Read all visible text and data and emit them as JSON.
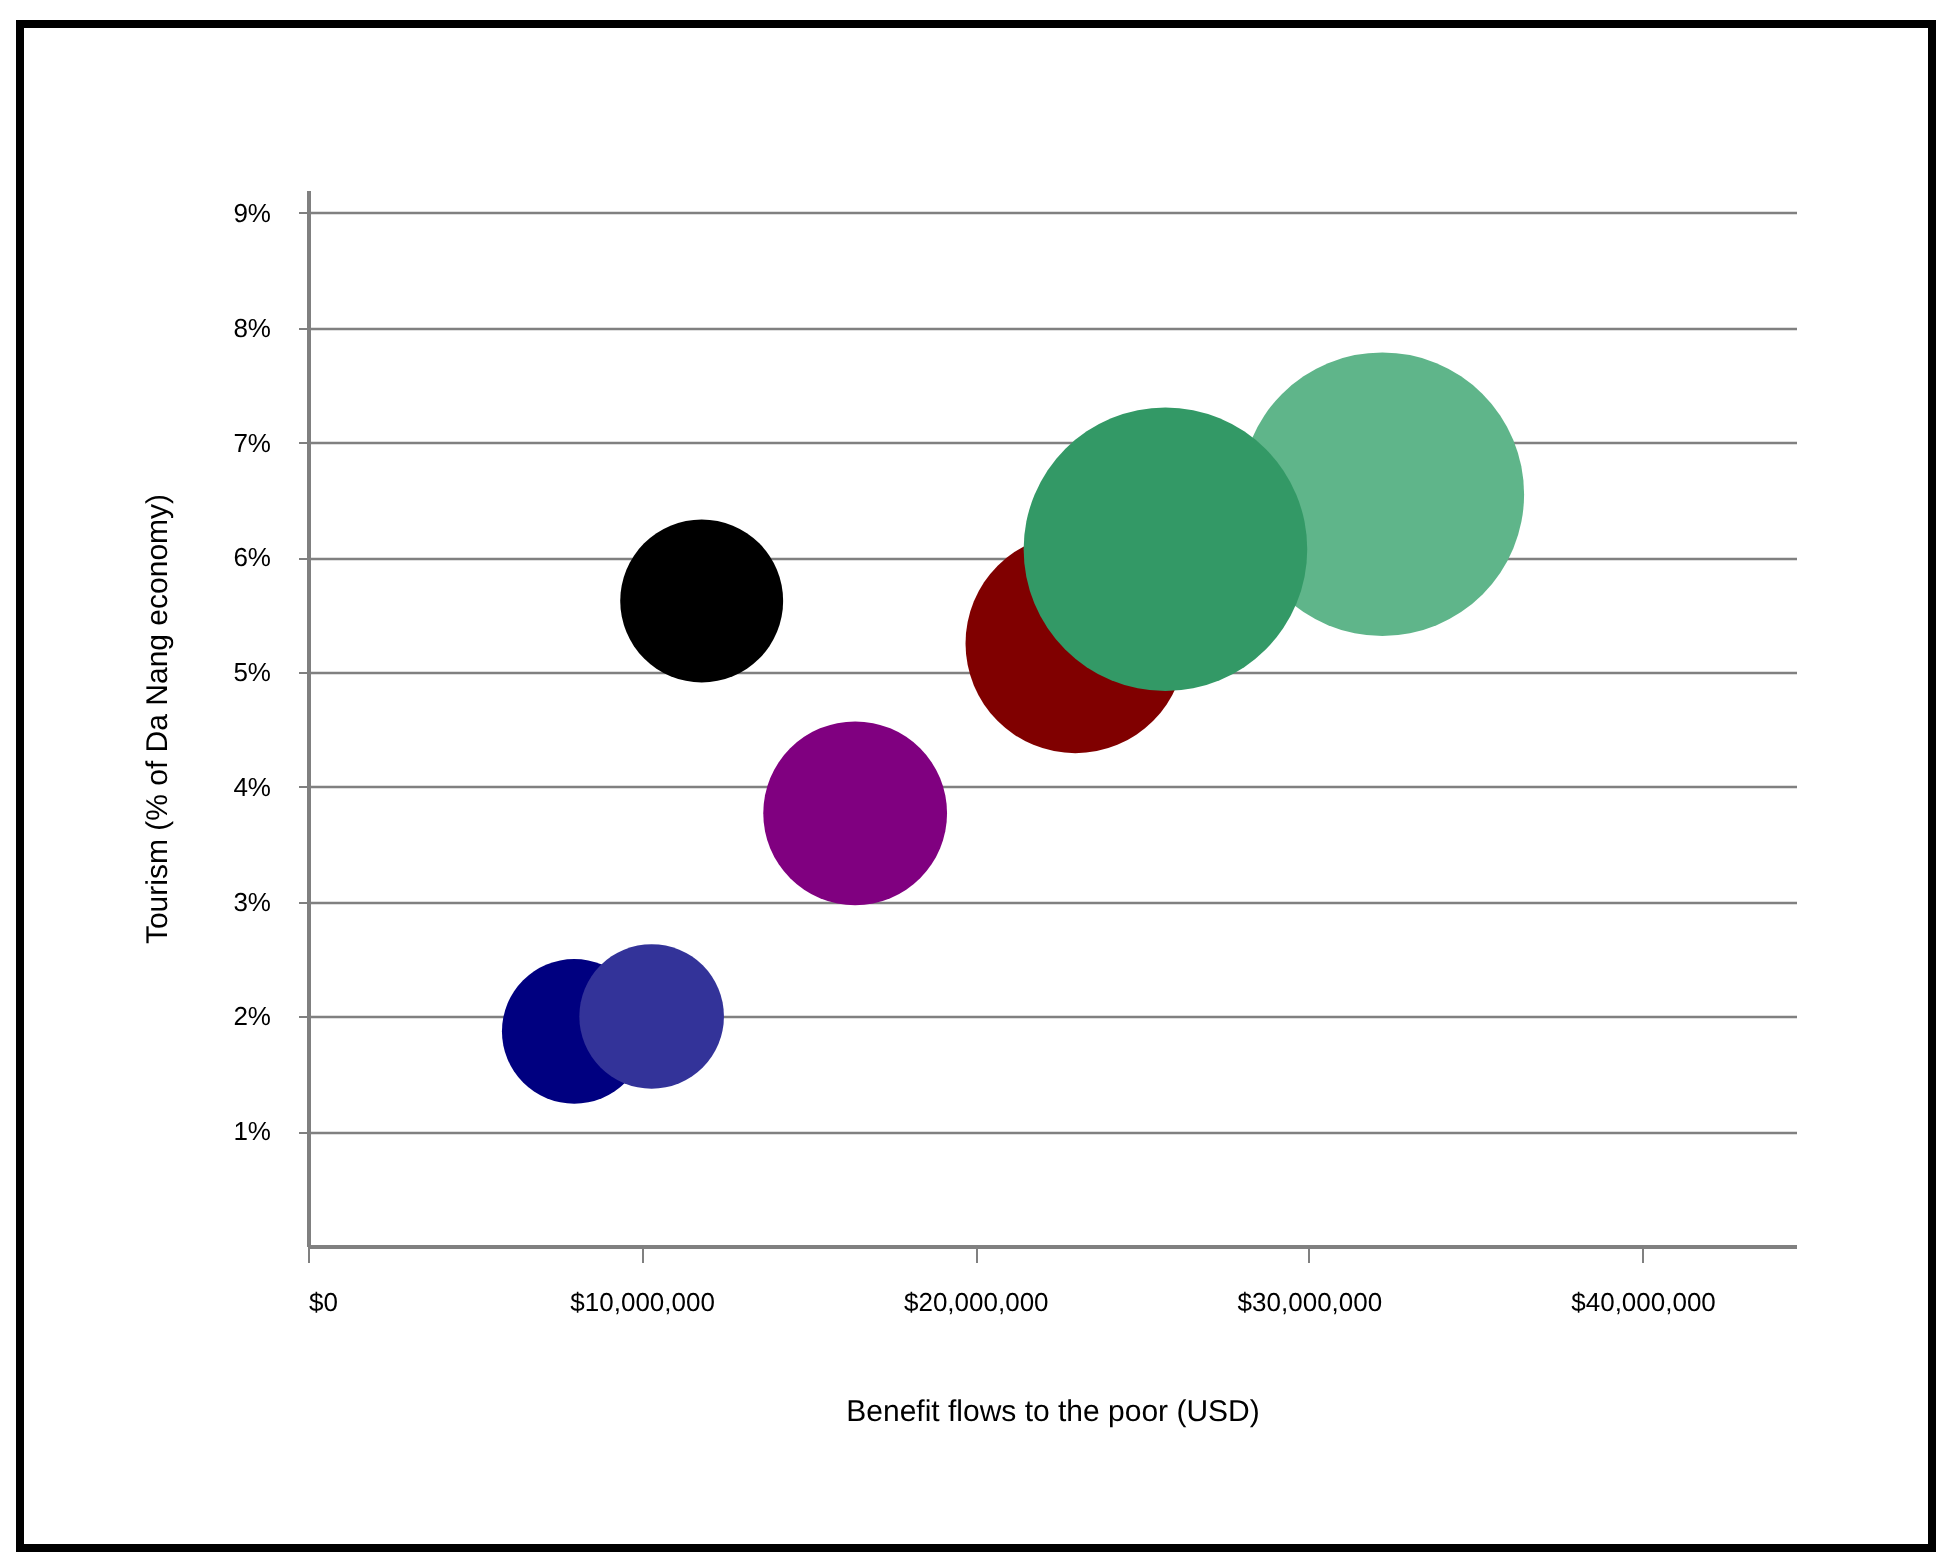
{
  "chart_data": {
    "type": "bubble",
    "xlabel": "Benefit flows to the poor (USD)",
    "ylabel": "Tourism (% of Da Nang economy)",
    "x": [
      7980000,
      10300000,
      11800000,
      16400000,
      32200000,
      23000000,
      25700000
    ],
    "values": [
      1.87,
      2.0,
      5.62,
      3.77,
      6.55,
      5.25,
      6.07
    ],
    "sizes": [
      0.26,
      0.26,
      0.33,
      0.42,
      1,
      0.6,
      1
    ],
    "colors": [
      "#000080",
      "#333399",
      "#000000",
      "#800080",
      "#5fb58a",
      "#800000",
      "#339966"
    ],
    "xlim": [
      0,
      44600000
    ],
    "xticks": [
      {
        "value": 0,
        "label": "$0"
      },
      {
        "value": 10000000,
        "label": "$10,000,000"
      },
      {
        "value": 20000000,
        "label": "$20,000,000"
      },
      {
        "value": 30000000,
        "label": "$30,000,000"
      },
      {
        "value": 40000000,
        "label": "$40,000,000"
      }
    ],
    "ylim": [
      0,
      9.2
    ],
    "yticks": [
      {
        "value": 1,
        "label": "1%"
      },
      {
        "value": 2,
        "label": "2%"
      },
      {
        "value": 3,
        "label": "3%"
      },
      {
        "value": 4,
        "label": "4%"
      },
      {
        "value": 5,
        "label": "5%"
      },
      {
        "value": 6,
        "label": "6%"
      },
      {
        "value": 7,
        "label": "7%"
      },
      {
        "value": 8,
        "label": "8%"
      },
      {
        "value": 9,
        "label": "9%"
      }
    ],
    "grid": "y",
    "legend": false,
    "marker": "circle"
  }
}
